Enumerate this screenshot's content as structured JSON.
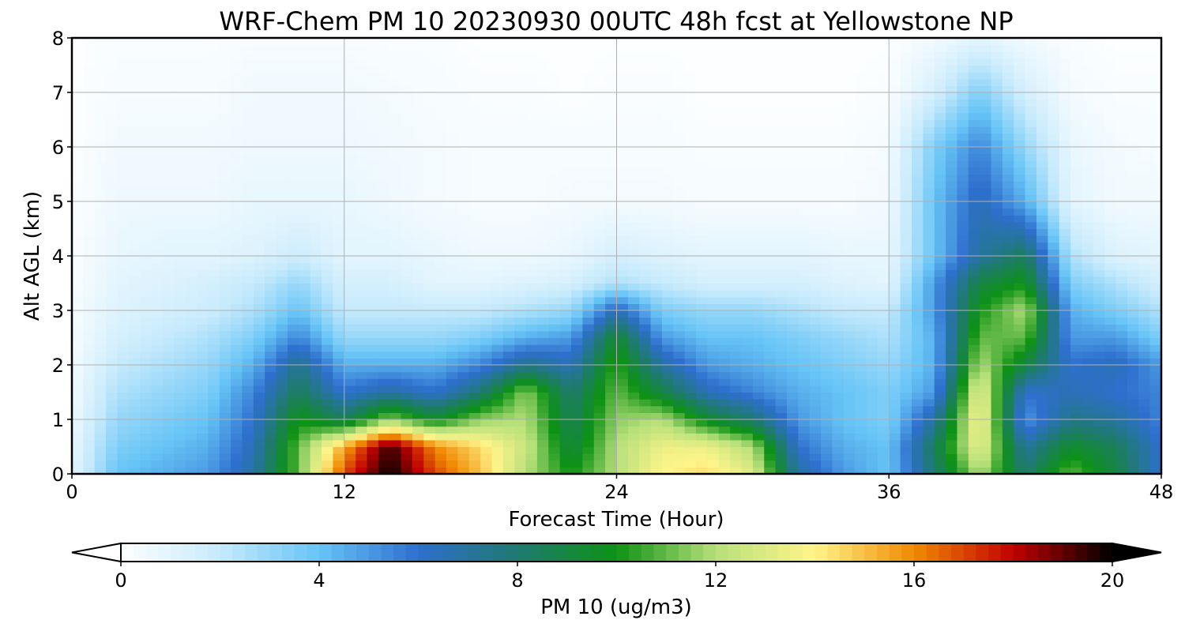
{
  "chart_data": {
    "type": "heatmap",
    "title": "WRF-Chem PM 10  20230930 00UTC 48h fcst at Yellowstone NP",
    "xlabel": "Forecast Time (Hour)",
    "ylabel": "Alt AGL (km)",
    "xlim": [
      0,
      48
    ],
    "ylim": [
      0,
      8
    ],
    "x_ticks": [
      "0",
      "12",
      "24",
      "36",
      "48"
    ],
    "y_ticks": [
      "0",
      "1",
      "2",
      "3",
      "4",
      "5",
      "6",
      "7",
      "8"
    ],
    "grid": true,
    "colorbar": {
      "label": "PM 10  (ug/m3)",
      "range": [
        0,
        20
      ],
      "ticks": [
        "0",
        "4",
        "8",
        "12",
        "16",
        "20"
      ],
      "extend": "both",
      "colors": [
        "#ffffff",
        "#c6eafc",
        "#66c4f6",
        "#2e6fce",
        "#1f7a70",
        "#0d9214",
        "#b7e07a",
        "#fff58a",
        "#f08a00",
        "#c10000",
        "#000000"
      ]
    },
    "x": [
      0,
      2,
      4,
      6,
      8,
      10,
      12,
      14,
      16,
      18,
      20,
      22,
      24,
      26,
      28,
      30,
      32,
      34,
      36,
      38,
      40,
      42,
      44,
      46,
      48
    ],
    "y": [
      0,
      0.5,
      1,
      1.5,
      2,
      2.5,
      3,
      3.5,
      4,
      5,
      6,
      7,
      8
    ],
    "z": [
      [
        1.0,
        4.0,
        4.5,
        5.0,
        7.0,
        11.0,
        17.0,
        20.0,
        17.0,
        15.0,
        12.0,
        10.0,
        12.0,
        14.0,
        14.5,
        13.0,
        7.0,
        5.0,
        4.0,
        8.0,
        12.0,
        8.0,
        11.0,
        9.0,
        6.0
      ],
      [
        0.8,
        3.5,
        4.0,
        4.5,
        6.5,
        11.0,
        15.5,
        19.5,
        16.0,
        14.5,
        12.5,
        9.0,
        12.0,
        13.5,
        13.5,
        12.0,
        6.0,
        4.5,
        4.0,
        8.5,
        13.5,
        7.0,
        9.5,
        8.5,
        6.0
      ],
      [
        0.6,
        3.0,
        3.5,
        4.0,
        6.0,
        10.0,
        8.5,
        11.5,
        9.5,
        11.5,
        12.0,
        8.5,
        11.5,
        12.0,
        9.5,
        8.0,
        5.0,
        4.0,
        3.5,
        7.0,
        14.0,
        5.0,
        7.5,
        7.0,
        5.5
      ],
      [
        0.5,
        2.5,
        3.0,
        3.5,
        5.5,
        8.5,
        6.0,
        7.0,
        6.0,
        8.0,
        11.5,
        8.0,
        11.0,
        9.0,
        6.5,
        5.5,
        4.5,
        4.0,
        3.5,
        5.0,
        13.5,
        6.0,
        6.5,
        6.0,
        5.5
      ],
      [
        0.4,
        2.0,
        2.5,
        3.0,
        4.5,
        7.5,
        4.5,
        4.5,
        4.5,
        5.5,
        7.5,
        6.5,
        10.5,
        7.0,
        5.0,
        4.5,
        4.0,
        3.5,
        3.0,
        4.5,
        12.0,
        9.0,
        6.0,
        6.5,
        5.0
      ],
      [
        0.3,
        1.5,
        2.0,
        2.5,
        3.5,
        5.5,
        3.0,
        3.0,
        3.0,
        3.5,
        4.5,
        5.0,
        9.5,
        5.0,
        4.0,
        4.0,
        3.5,
        3.0,
        2.5,
        4.5,
        11.0,
        11.0,
        5.0,
        5.0,
        3.5
      ],
      [
        0.3,
        1.2,
        1.5,
        1.8,
        2.5,
        4.0,
        2.0,
        2.0,
        2.0,
        2.0,
        2.5,
        3.0,
        6.5,
        3.5,
        3.0,
        3.0,
        2.5,
        2.0,
        2.0,
        5.0,
        10.0,
        12.0,
        4.5,
        3.5,
        2.5
      ],
      [
        0.2,
        1.0,
        1.2,
        1.5,
        2.0,
        3.0,
        1.5,
        1.5,
        1.0,
        1.0,
        1.2,
        1.5,
        2.5,
        2.0,
        1.5,
        1.5,
        1.5,
        1.2,
        1.0,
        5.0,
        9.0,
        10.0,
        3.5,
        2.5,
        1.5
      ],
      [
        0.2,
        0.8,
        1.0,
        1.0,
        1.2,
        1.8,
        1.0,
        1.0,
        0.8,
        0.6,
        0.6,
        0.8,
        1.5,
        1.2,
        1.0,
        1.0,
        1.0,
        0.8,
        0.8,
        4.0,
        7.0,
        8.5,
        2.5,
        1.2,
        1.0
      ],
      [
        0.1,
        0.6,
        0.6,
        0.6,
        0.8,
        0.8,
        0.8,
        0.6,
        0.4,
        0.3,
        0.3,
        0.4,
        0.4,
        0.4,
        0.3,
        0.3,
        0.3,
        0.3,
        0.5,
        4.0,
        6.5,
        4.5,
        1.0,
        0.5,
        0.5
      ],
      [
        0.1,
        0.5,
        0.5,
        0.5,
        0.6,
        0.6,
        0.6,
        0.5,
        0.4,
        0.3,
        0.3,
        0.3,
        0.3,
        0.3,
        0.2,
        0.2,
        0.2,
        0.2,
        0.4,
        3.5,
        5.5,
        3.0,
        0.8,
        0.4,
        0.3
      ],
      [
        0.1,
        0.3,
        0.3,
        0.3,
        0.5,
        0.5,
        0.5,
        0.4,
        0.3,
        0.2,
        0.2,
        0.1,
        0.2,
        0.2,
        0.1,
        0.1,
        0.1,
        0.1,
        0.2,
        1.5,
        3.5,
        1.5,
        0.4,
        0.2,
        0.2
      ],
      [
        0.1,
        0.2,
        0.2,
        0.2,
        0.3,
        0.3,
        0.3,
        0.2,
        0.2,
        0.1,
        0.1,
        0.1,
        0.1,
        0.1,
        0.1,
        0.1,
        0.1,
        0.1,
        0.1,
        0.5,
        1.0,
        0.5,
        0.2,
        0.1,
        0.1
      ]
    ]
  }
}
